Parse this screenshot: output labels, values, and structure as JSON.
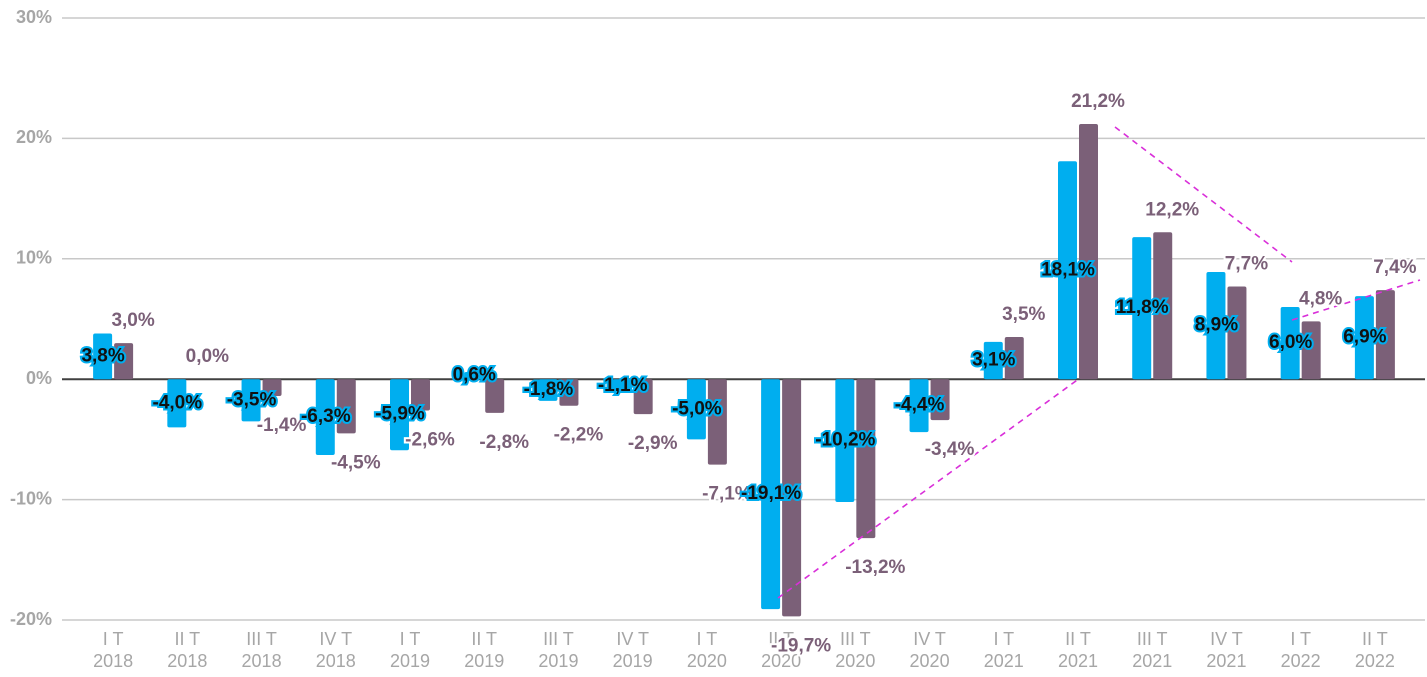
{
  "chart_data": {
    "type": "bar",
    "categories": [
      [
        "I T",
        "2018"
      ],
      [
        "II T",
        "2018"
      ],
      [
        "III T",
        "2018"
      ],
      [
        "IV T",
        "2018"
      ],
      [
        "I T",
        "2019"
      ],
      [
        "II T",
        "2019"
      ],
      [
        "III T",
        "2019"
      ],
      [
        "IV T",
        "2019"
      ],
      [
        "I T",
        "2020"
      ],
      [
        "II T",
        "2020"
      ],
      [
        "III T",
        "2020"
      ],
      [
        "IV T",
        "2020"
      ],
      [
        "I T",
        "2021"
      ],
      [
        "II T",
        "2021"
      ],
      [
        "III T",
        "2021"
      ],
      [
        "IV T",
        "2021"
      ],
      [
        "I T",
        "2022"
      ],
      [
        "II T",
        "2022"
      ]
    ],
    "series": [
      {
        "color": "#00aeef",
        "values": [
          3.8,
          -4.0,
          -3.5,
          -6.3,
          -5.9,
          0.6,
          -1.8,
          -1.1,
          -5.0,
          -19.1,
          -10.2,
          -4.4,
          3.1,
          18.1,
          11.8,
          8.9,
          6.0,
          6.9
        ],
        "value_labels": [
          "3,8%",
          "-4,0%",
          "-3,5%",
          "-6,3%",
          "-5,9%",
          "0,6%",
          "-1,8%",
          "-1,1%",
          "-5,0%",
          "-19,1%",
          "-10,2%",
          "-4,4%",
          "3,1%",
          "18,1%",
          "11,8%",
          "8,9%",
          "6,0%",
          "6,9%"
        ]
      },
      {
        "color": "#7b6078",
        "values": [
          3.0,
          0.0,
          -1.4,
          -4.5,
          -2.6,
          -2.8,
          -2.2,
          -2.9,
          -7.1,
          -19.7,
          -13.2,
          -3.4,
          3.5,
          21.2,
          12.2,
          7.7,
          4.8,
          7.4
        ],
        "value_labels": [
          "3,0%",
          "0,0%",
          "-1,4%",
          "-4,5%",
          "-2,6%",
          "-2,8%",
          "-2,2%",
          "-2,9%",
          "-7,1%",
          "-19,7%",
          "-13,2%",
          "-3,4%",
          "3,5%",
          "21,2%",
          "12,2%",
          "7,7%",
          "4,8%",
          "7,4%"
        ]
      }
    ],
    "ylim": [
      -20,
      30
    ],
    "yticks": [
      {
        "value": -20,
        "label": "-20%"
      },
      {
        "value": -10,
        "label": "-10%"
      },
      {
        "value": 0,
        "label": "0%"
      },
      {
        "value": 10,
        "label": "10%"
      },
      {
        "value": 20,
        "label": "20%"
      },
      {
        "value": 30,
        "label": "30%"
      }
    ],
    "grid": true
  }
}
